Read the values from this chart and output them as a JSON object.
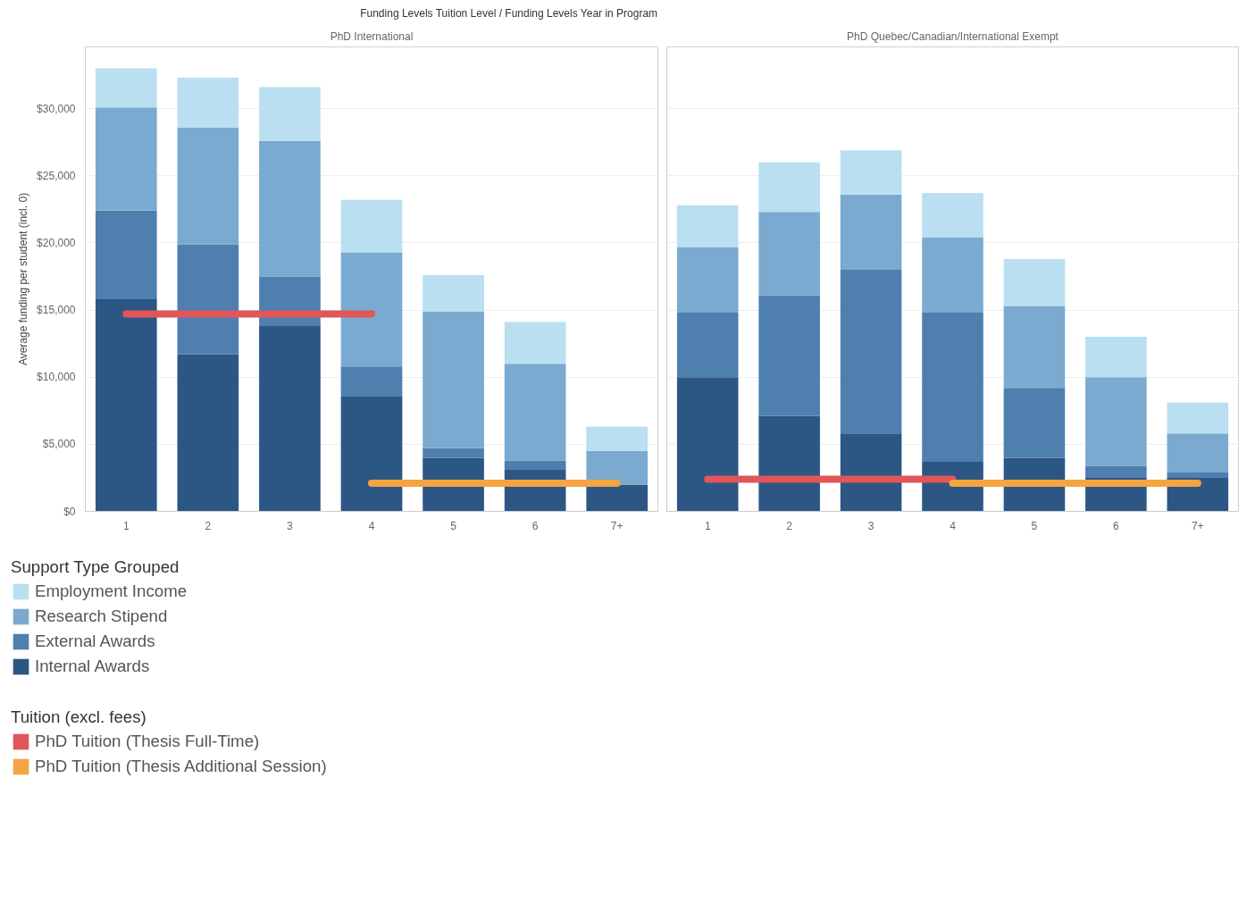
{
  "chart_data": [
    {
      "type": "bar",
      "title": "Funding Levels Tuition Level / Funding Levels Year in Program",
      "subtitle": "PhD International",
      "ylabel": "Average funding per student (incl. 0)",
      "legend_title": "Support Type Grouped",
      "annotations": [
        "Tuition (excl. fees)"
      ],
      "stacked": true,
      "legend": "bottom",
      "grid": "y",
      "categories": [
        "1",
        "2",
        "3",
        "4",
        "5",
        "6",
        "7+"
      ],
      "ylim": [
        0,
        34600
      ],
      "yticks": [
        {
          "value": 0,
          "label": "$0"
        },
        {
          "value": 5000,
          "label": "$5,000"
        },
        {
          "value": 10000,
          "label": "$10,000"
        },
        {
          "value": 15000,
          "label": "$15,000"
        },
        {
          "value": 20000,
          "label": "$20,000"
        },
        {
          "value": 25000,
          "label": "$25,000"
        },
        {
          "value": 30000,
          "label": "$30,000"
        }
      ],
      "series": [
        {
          "name": "Internal Awards",
          "color": "#2c5784",
          "values": [
            15800,
            11700,
            13800,
            8600,
            4000,
            3100,
            2000
          ]
        },
        {
          "name": "External Awards",
          "color": "#4e7fae",
          "values": [
            6600,
            8200,
            3700,
            2200,
            700,
            700,
            0
          ]
        },
        {
          "name": "Research Stipend",
          "color": "#7aaacf",
          "values": [
            7700,
            8700,
            10100,
            8500,
            10200,
            7200,
            2500
          ]
        },
        {
          "name": "Employment Income",
          "color": "#b9dff1",
          "values": [
            2900,
            3700,
            4000,
            3900,
            2700,
            3100,
            1800
          ]
        },
        {
          "name": "PhD Tuition (Thesis Full-Time)",
          "type": "line",
          "color": "#e05659",
          "values": [
            14700,
            14700,
            14700,
            14700,
            null,
            null,
            null
          ]
        },
        {
          "name": "PhD Tuition (Thesis Additional Session)",
          "type": "line",
          "color": "#f4a441",
          "values": [
            null,
            null,
            null,
            2100,
            2100,
            2100,
            2100
          ]
        }
      ]
    },
    {
      "type": "bar",
      "subtitle": "PhD Quebec/Canadian/International Exempt",
      "stacked": true,
      "grid": "y",
      "tick_labels": "x",
      "categories": [
        "1",
        "2",
        "3",
        "4",
        "5",
        "6",
        "7+"
      ],
      "ylim": [
        0,
        34600
      ],
      "yticks": [
        0,
        5000,
        10000,
        15000,
        20000,
        25000,
        30000
      ],
      "series": [
        {
          "color": "#2c5784",
          "values": [
            10000,
            7100,
            5800,
            3700,
            4000,
            2500,
            2500
          ]
        },
        {
          "color": "#4e7fae",
          "values": [
            4800,
            9000,
            12200,
            11100,
            5200,
            900,
            400
          ]
        },
        {
          "color": "#7aaacf",
          "values": [
            4900,
            6200,
            5600,
            5600,
            6100,
            6600,
            2900
          ]
        },
        {
          "color": "#b9dff1",
          "values": [
            3100,
            3700,
            3300,
            3300,
            3500,
            3000,
            2300
          ]
        },
        {
          "type": "line",
          "color": "#e05659",
          "values": [
            2400,
            2400,
            2400,
            2400,
            null,
            null,
            null
          ]
        },
        {
          "type": "line",
          "color": "#f4a441",
          "values": [
            null,
            null,
            null,
            2100,
            2100,
            2100,
            2100
          ]
        }
      ]
    }
  ]
}
